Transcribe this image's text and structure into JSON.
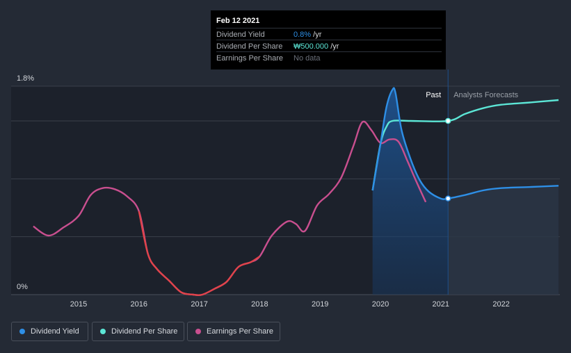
{
  "tooltip": {
    "date": "Feb 12 2021",
    "rows": [
      {
        "label": "Dividend Yield",
        "value": "0.8%",
        "suffix": " /yr",
        "color": "#2e8fe6"
      },
      {
        "label": "Dividend Per Share",
        "value": "₩500.000",
        "suffix": " /yr",
        "color": "#5ce6d6"
      },
      {
        "label": "Earnings Per Share",
        "value": "No data",
        "suffix": "",
        "color": "#6b707a"
      }
    ]
  },
  "region_labels": {
    "past": "Past",
    "forecast": "Analysts Forecasts"
  },
  "legend": [
    {
      "label": "Dividend Yield",
      "color": "#2e8fe6"
    },
    {
      "label": "Dividend Per Share",
      "color": "#5ce6d6"
    },
    {
      "label": "Earnings Per Share",
      "color": "#c94f8f"
    }
  ],
  "colors": {
    "background": "#242a35",
    "past_region": "#1c212b",
    "grid": "#3a404b",
    "axis_text": "#d3d6db",
    "eps_negative": "#e0434a"
  },
  "chart_data": {
    "type": "line",
    "x_ticks": [
      "2015",
      "2016",
      "2017",
      "2018",
      "2019",
      "2020",
      "2021",
      "2022"
    ],
    "xlim": [
      2014.25,
      2022.95
    ],
    "y_tick_labels": [
      "1.8%",
      "0%"
    ],
    "ylim": [
      0,
      1.8
    ],
    "grid": true,
    "legend_position": "bottom-left",
    "past_region": [
      2019.87,
      2021.12
    ],
    "tooltip_date": 2021.12,
    "series": [
      {
        "name": "Earnings Per Share",
        "axis": "relative",
        "color": "#c94f8f",
        "points": [
          [
            2014.25,
            0.59
          ],
          [
            2014.5,
            0.51
          ],
          [
            2014.75,
            0.58
          ],
          [
            2015.0,
            0.68
          ],
          [
            2015.2,
            0.86
          ],
          [
            2015.4,
            0.92
          ],
          [
            2015.6,
            0.91
          ],
          [
            2015.8,
            0.85
          ],
          [
            2016.0,
            0.72
          ],
          [
            2016.15,
            0.35
          ],
          [
            2016.3,
            0.22
          ],
          [
            2016.5,
            0.12
          ],
          [
            2016.7,
            0.02
          ],
          [
            2016.9,
            0.0
          ],
          [
            2017.05,
            0.0
          ],
          [
            2017.25,
            0.05
          ],
          [
            2017.45,
            0.11
          ],
          [
            2017.65,
            0.24
          ],
          [
            2017.85,
            0.28
          ],
          [
            2018.0,
            0.33
          ],
          [
            2018.2,
            0.51
          ],
          [
            2018.45,
            0.63
          ],
          [
            2018.6,
            0.61
          ],
          [
            2018.75,
            0.55
          ],
          [
            2018.95,
            0.77
          ],
          [
            2019.15,
            0.87
          ],
          [
            2019.35,
            1.01
          ],
          [
            2019.55,
            1.28
          ],
          [
            2019.7,
            1.49
          ],
          [
            2019.85,
            1.42
          ],
          [
            2020.0,
            1.31
          ],
          [
            2020.15,
            1.34
          ],
          [
            2020.3,
            1.32
          ],
          [
            2020.45,
            1.15
          ],
          [
            2020.6,
            0.97
          ],
          [
            2020.75,
            0.8
          ]
        ]
      },
      {
        "name": "Dividend Yield",
        "axis": "percent",
        "color": "#2e8fe6",
        "points": [
          [
            2019.87,
            0.9
          ],
          [
            2020.0,
            1.3
          ],
          [
            2020.1,
            1.62
          ],
          [
            2020.2,
            1.77
          ],
          [
            2020.25,
            1.74
          ],
          [
            2020.35,
            1.42
          ],
          [
            2020.5,
            1.17
          ],
          [
            2020.65,
            0.99
          ],
          [
            2020.8,
            0.89
          ],
          [
            2021.0,
            0.83
          ],
          [
            2021.12,
            0.83
          ],
          [
            2021.4,
            0.86
          ],
          [
            2021.7,
            0.9
          ],
          [
            2022.0,
            0.92
          ],
          [
            2022.5,
            0.93
          ],
          [
            2022.95,
            0.94
          ]
        ]
      },
      {
        "name": "Dividend Per Share",
        "axis": "relative",
        "color": "#5ce6d6",
        "points": [
          [
            2019.87,
            0.9
          ],
          [
            2020.0,
            1.3
          ],
          [
            2020.1,
            1.45
          ],
          [
            2020.2,
            1.5
          ],
          [
            2020.5,
            1.5
          ],
          [
            2021.12,
            1.5
          ],
          [
            2021.4,
            1.56
          ],
          [
            2021.7,
            1.61
          ],
          [
            2022.0,
            1.64
          ],
          [
            2022.5,
            1.66
          ],
          [
            2022.95,
            1.68
          ]
        ]
      }
    ]
  }
}
